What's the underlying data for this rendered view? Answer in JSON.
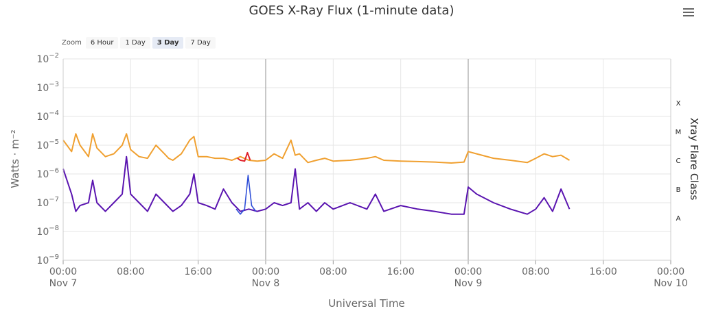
{
  "toolbar": {
    "zoom_label": "Zoom",
    "zoom_options": [
      "6 Hour",
      "1 Day",
      "3 Day",
      "7 Day"
    ],
    "active_zoom": "3 Day"
  },
  "chart_data": {
    "type": "line",
    "title": "GOES X-Ray Flux (1-minute data)",
    "xlabel": "Universal Time",
    "ylabel": "Watts · m⁻²",
    "y2label": "Xray Flare Class",
    "yscale": "log",
    "ylim": [
      1e-09,
      0.01
    ],
    "y_ticks": [
      {
        "value": 1e-09,
        "base": "10",
        "exp": "−9"
      },
      {
        "value": 1e-08,
        "base": "10",
        "exp": "−8"
      },
      {
        "value": 1e-07,
        "base": "10",
        "exp": "−7"
      },
      {
        "value": 1e-06,
        "base": "10",
        "exp": "−6"
      },
      {
        "value": 1e-05,
        "base": "10",
        "exp": "−5"
      },
      {
        "value": 0.0001,
        "base": "10",
        "exp": "−4"
      },
      {
        "value": 0.001,
        "base": "10",
        "exp": "−3"
      },
      {
        "value": 0.01,
        "base": "10",
        "exp": "−2"
      }
    ],
    "flare_classes": [
      {
        "label": "A",
        "value": 3e-08
      },
      {
        "label": "B",
        "value": 3e-07
      },
      {
        "label": "C",
        "value": 3e-06
      },
      {
        "label": "M",
        "value": 3e-05
      },
      {
        "label": "X",
        "value": 0.0003
      }
    ],
    "xlim": [
      "2023-11-07T00:00",
      "2023-11-10T00:00"
    ],
    "x_ticks": [
      {
        "t": "2023-11-07T00:00",
        "time": "00:00",
        "date": "Nov 7"
      },
      {
        "t": "2023-11-07T08:00",
        "time": "08:00",
        "date": ""
      },
      {
        "t": "2023-11-07T16:00",
        "time": "16:00",
        "date": ""
      },
      {
        "t": "2023-11-08T00:00",
        "time": "00:00",
        "date": "Nov 8"
      },
      {
        "t": "2023-11-08T08:00",
        "time": "08:00",
        "date": ""
      },
      {
        "t": "2023-11-08T16:00",
        "time": "16:00",
        "date": ""
      },
      {
        "t": "2023-11-09T00:00",
        "time": "00:00",
        "date": "Nov 9"
      },
      {
        "t": "2023-11-09T08:00",
        "time": "08:00",
        "date": ""
      },
      {
        "t": "2023-11-09T16:00",
        "time": "16:00",
        "date": ""
      },
      {
        "t": "2023-11-10T00:00",
        "time": "00:00",
        "date": "Nov 10"
      }
    ],
    "day_boundaries": [
      "2023-11-08T00:00",
      "2023-11-09T00:00"
    ],
    "colors": {
      "long": "#f0a030",
      "long_highlight": "#e0202a",
      "short": "#5a14b0",
      "short_secondary": "#3050d8",
      "grid": "#e6e6e6",
      "day_line": "#b5b5b5"
    },
    "series": [
      {
        "key": "long",
        "x": [
          "2023-11-07T00:00",
          "2023-11-07T01:00",
          "2023-11-07T01:30",
          "2023-11-07T02:00",
          "2023-11-07T03:00",
          "2023-11-07T03:30",
          "2023-11-07T04:00",
          "2023-11-07T05:00",
          "2023-11-07T06:00",
          "2023-11-07T07:00",
          "2023-11-07T07:30",
          "2023-11-07T08:00",
          "2023-11-07T09:00",
          "2023-11-07T10:00",
          "2023-11-07T11:00",
          "2023-11-07T12:00",
          "2023-11-07T12:30",
          "2023-11-07T13:00",
          "2023-11-07T14:00",
          "2023-11-07T15:00",
          "2023-11-07T15:30",
          "2023-11-07T16:00",
          "2023-11-07T17:00",
          "2023-11-07T18:00",
          "2023-11-07T19:00",
          "2023-11-07T20:00",
          "2023-11-07T21:00",
          "2023-11-07T22:00",
          "2023-11-07T23:00",
          "2023-11-08T00:00",
          "2023-11-08T01:00",
          "2023-11-08T02:00",
          "2023-11-08T03:00",
          "2023-11-08T03:30",
          "2023-11-08T04:00",
          "2023-11-08T05:00",
          "2023-11-08T06:00",
          "2023-11-08T07:00",
          "2023-11-08T08:00",
          "2023-11-08T10:00",
          "2023-11-08T12:00",
          "2023-11-08T13:00",
          "2023-11-08T14:00",
          "2023-11-08T16:00",
          "2023-11-08T18:00",
          "2023-11-08T20:00",
          "2023-11-08T22:00",
          "2023-11-08T23:30",
          "2023-11-09T00:00",
          "2023-11-09T01:00",
          "2023-11-09T03:00",
          "2023-11-09T05:00",
          "2023-11-09T07:00",
          "2023-11-09T08:00",
          "2023-11-09T09:00",
          "2023-11-09T10:00",
          "2023-11-09T11:00",
          "2023-11-09T12:00"
        ],
        "values": [
          1.5e-05,
          6e-06,
          2.5e-05,
          1e-05,
          4e-06,
          2.5e-05,
          8e-06,
          4e-06,
          5e-06,
          1e-05,
          2.5e-05,
          7e-06,
          4e-06,
          3.5e-06,
          1e-05,
          5e-06,
          3.5e-06,
          3e-06,
          5e-06,
          1.5e-05,
          2e-05,
          4e-06,
          4e-06,
          3.5e-06,
          3.5e-06,
          3e-06,
          4e-06,
          3e-06,
          2.8e-06,
          3e-06,
          5e-06,
          3.5e-06,
          1.5e-05,
          4.5e-06,
          5e-06,
          2.5e-06,
          3e-06,
          3.5e-06,
          2.8e-06,
          3e-06,
          3.5e-06,
          4e-06,
          3e-06,
          2.8e-06,
          2.7e-06,
          2.6e-06,
          2.4e-06,
          2.6e-06,
          6e-06,
          5e-06,
          3.5e-06,
          3e-06,
          2.5e-06,
          3.5e-06,
          5e-06,
          4e-06,
          4.5e-06,
          3e-06
        ]
      },
      {
        "key": "long_highlight",
        "x": [
          "2023-11-07T20:40",
          "2023-11-07T21:00",
          "2023-11-07T21:30",
          "2023-11-07T21:50",
          "2023-11-07T22:10"
        ],
        "values": [
          3.5e-06,
          3e-06,
          2.8e-06,
          5.5e-06,
          3e-06
        ]
      },
      {
        "key": "short",
        "x": [
          "2023-11-07T00:00",
          "2023-11-07T01:00",
          "2023-11-07T01:30",
          "2023-11-07T02:00",
          "2023-11-07T03:00",
          "2023-11-07T03:30",
          "2023-11-07T04:00",
          "2023-11-07T05:00",
          "2023-11-07T06:00",
          "2023-11-07T07:00",
          "2023-11-07T07:30",
          "2023-11-07T08:00",
          "2023-11-07T09:00",
          "2023-11-07T10:00",
          "2023-11-07T11:00",
          "2023-11-07T12:00",
          "2023-11-07T13:00",
          "2023-11-07T14:00",
          "2023-11-07T15:00",
          "2023-11-07T15:30",
          "2023-11-07T16:00",
          "2023-11-07T17:00",
          "2023-11-07T18:00",
          "2023-11-07T19:00",
          "2023-11-07T20:00",
          "2023-11-07T21:00",
          "2023-11-07T22:00",
          "2023-11-07T23:00",
          "2023-11-08T00:00",
          "2023-11-08T01:00",
          "2023-11-08T02:00",
          "2023-11-08T03:00",
          "2023-11-08T03:30",
          "2023-11-08T04:00",
          "2023-11-08T05:00",
          "2023-11-08T06:00",
          "2023-11-08T07:00",
          "2023-11-08T08:00",
          "2023-11-08T10:00",
          "2023-11-08T12:00",
          "2023-11-08T13:00",
          "2023-11-08T14:00",
          "2023-11-08T16:00",
          "2023-11-08T18:00",
          "2023-11-08T20:00",
          "2023-11-08T22:00",
          "2023-11-08T23:30",
          "2023-11-09T00:00",
          "2023-11-09T01:00",
          "2023-11-09T03:00",
          "2023-11-09T05:00",
          "2023-11-09T07:00",
          "2023-11-09T08:00",
          "2023-11-09T09:00",
          "2023-11-09T10:00",
          "2023-11-09T11:00",
          "2023-11-09T12:00"
        ],
        "values": [
          1.5e-06,
          2e-07,
          5e-08,
          8e-08,
          1e-07,
          6e-07,
          1e-07,
          5e-08,
          1e-07,
          2e-07,
          4e-06,
          2e-07,
          1e-07,
          5e-08,
          2e-07,
          1e-07,
          5e-08,
          8e-08,
          2e-07,
          1e-06,
          1e-07,
          8e-08,
          6e-08,
          3e-07,
          1e-07,
          5e-08,
          6e-08,
          5e-08,
          6e-08,
          1e-07,
          8e-08,
          1e-07,
          1.5e-06,
          6e-08,
          1e-07,
          5e-08,
          1e-07,
          6e-08,
          1e-07,
          6e-08,
          2e-07,
          5e-08,
          8e-08,
          6e-08,
          5e-08,
          4e-08,
          4e-08,
          3.5e-07,
          2e-07,
          1e-07,
          6e-08,
          4e-08,
          6e-08,
          1.5e-07,
          5e-08,
          3e-07,
          6e-08
        ]
      },
      {
        "key": "short_secondary",
        "x": [
          "2023-11-07T20:30",
          "2023-11-07T21:00",
          "2023-11-07T21:30",
          "2023-11-07T21:55",
          "2023-11-07T22:20",
          "2023-11-07T22:50"
        ],
        "values": [
          6e-08,
          4e-08,
          6e-08,
          9e-07,
          8e-08,
          5e-08
        ]
      }
    ]
  }
}
